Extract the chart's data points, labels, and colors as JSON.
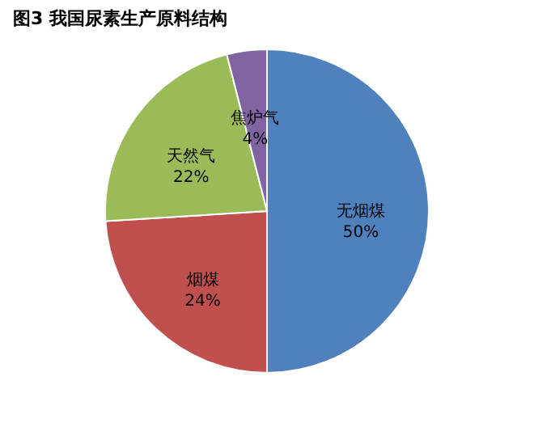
{
  "chart_data": {
    "type": "pie",
    "title": "图3  我国尿素生产原料结构",
    "categories": [
      "无烟煤",
      "烟煤",
      "天然气",
      "焦炉气"
    ],
    "values": [
      50,
      24,
      22,
      4
    ],
    "colors": [
      "#4f81bd",
      "#c0504d",
      "#9bbb59",
      "#8064a2"
    ],
    "value_labels": [
      "50%",
      "24%",
      "22%",
      "4%"
    ],
    "legend": false
  }
}
